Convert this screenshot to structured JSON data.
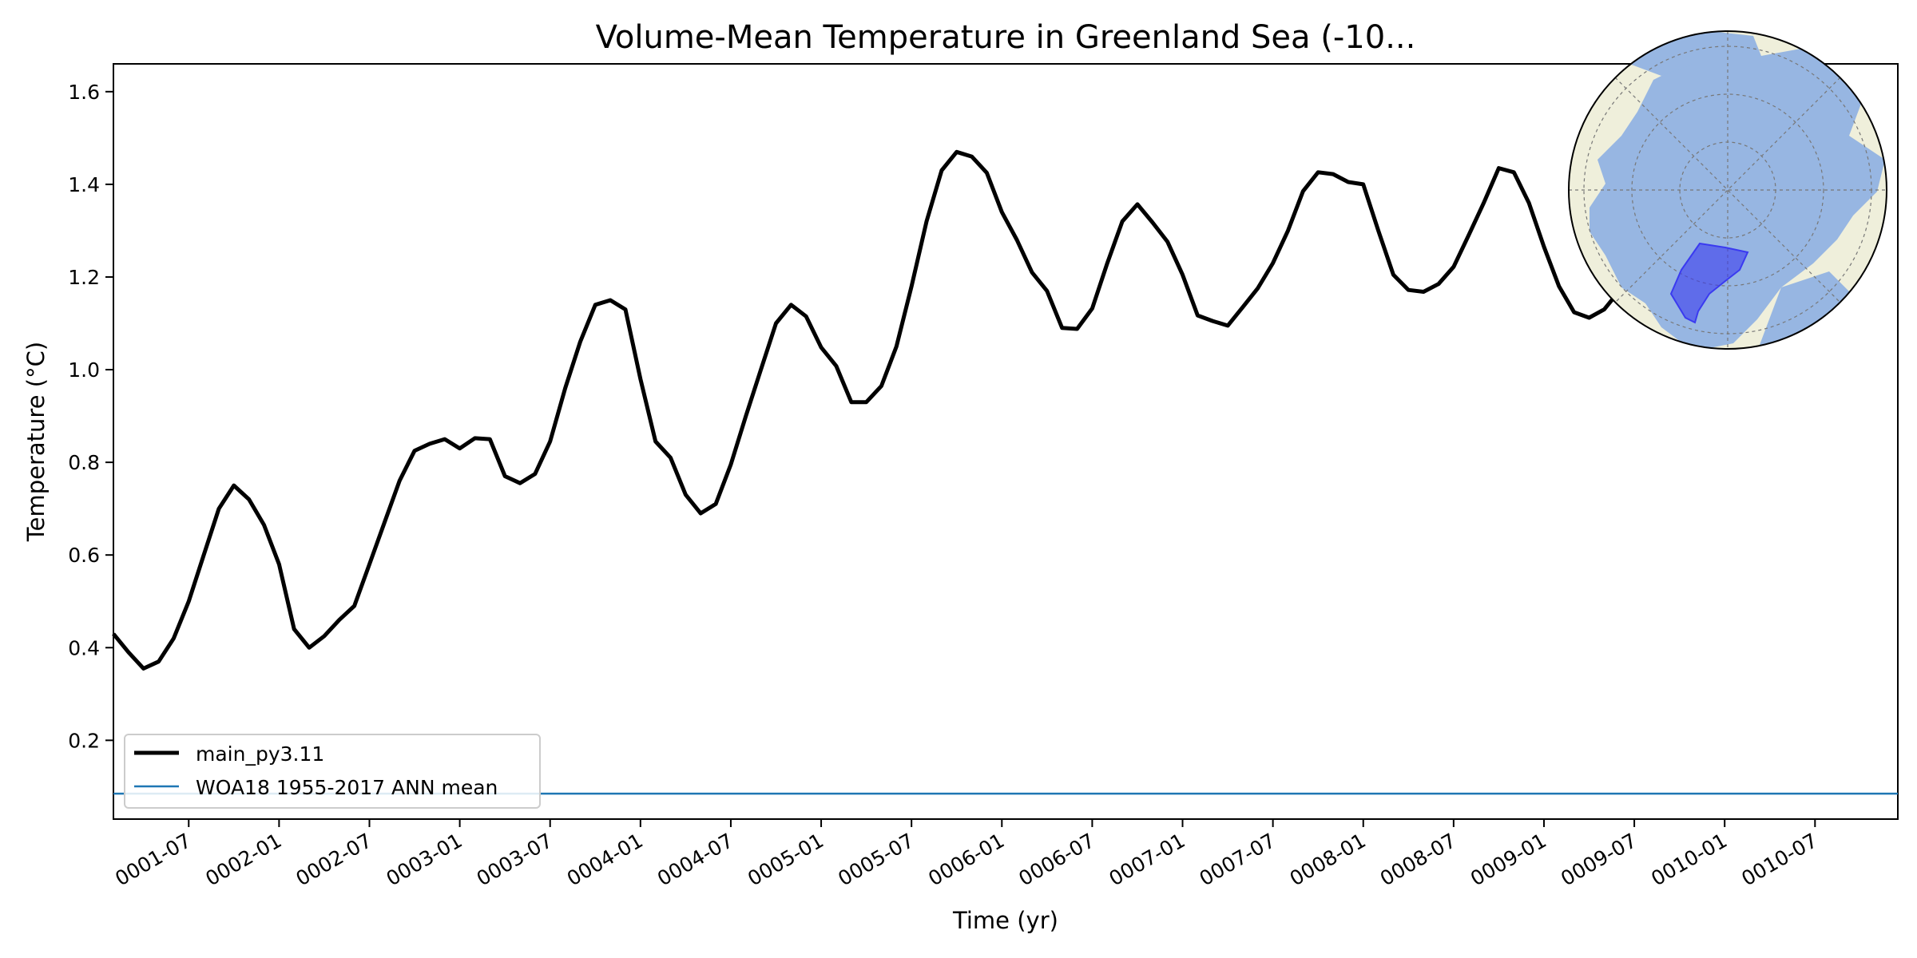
{
  "chart_data": {
    "type": "line",
    "title": "Volume-Mean Temperature in Greenland Sea (-10...",
    "xlabel": "Time (yr)",
    "ylabel": "Temperature (°C)",
    "xlim": [
      "0001-02",
      "0010-12"
    ],
    "ylim": [
      0.03,
      1.66
    ],
    "xticks": [
      "0001-07",
      "0002-01",
      "0002-07",
      "0003-01",
      "0003-07",
      "0004-01",
      "0004-07",
      "0005-01",
      "0005-07",
      "0006-01",
      "0006-07",
      "0007-01",
      "0007-07",
      "0008-01",
      "0008-07",
      "0009-01",
      "0009-07",
      "0010-01",
      "0010-07"
    ],
    "yticks": [
      0.2,
      0.4,
      0.6,
      0.8,
      1.0,
      1.2,
      1.4,
      1.6
    ],
    "ytick_labels": [
      "0.2",
      "0.4",
      "0.6",
      "0.8",
      "1.0",
      "1.2",
      "1.4",
      "1.6"
    ],
    "legend_position": "lower-left",
    "series": [
      {
        "name": "main_py3.11",
        "color": "#000000",
        "x_start": "0001-02",
        "x_step_months": 1,
        "values": [
          0.43,
          0.39,
          0.355,
          0.37,
          0.42,
          0.5,
          0.6,
          0.7,
          0.75,
          0.72,
          0.665,
          0.58,
          0.44,
          0.4,
          0.425,
          0.46,
          0.49,
          0.58,
          0.67,
          0.76,
          0.825,
          0.84,
          0.85,
          0.83,
          0.852,
          0.85,
          0.77,
          0.755,
          0.775,
          0.845,
          0.96,
          1.06,
          1.14,
          1.15,
          1.13,
          0.98,
          0.845,
          0.81,
          0.73,
          0.69,
          0.71,
          0.795,
          0.9,
          1.0,
          1.1,
          1.14,
          1.115,
          1.048,
          1.008,
          0.93,
          0.93,
          0.965,
          1.05,
          1.18,
          1.32,
          1.43,
          1.47,
          1.46,
          1.425,
          1.34,
          1.28,
          1.21,
          1.17,
          1.09,
          1.088,
          1.132,
          1.23,
          1.32,
          1.357,
          1.318,
          1.276,
          1.205,
          1.117,
          1.105,
          1.095,
          1.135,
          1.176,
          1.23,
          1.3,
          1.385,
          1.426,
          1.422,
          1.405,
          1.4,
          1.3,
          1.205,
          1.172,
          1.168,
          1.185,
          1.222,
          1.29,
          1.36,
          1.435,
          1.426,
          1.36,
          1.265,
          1.18,
          1.124,
          1.112,
          1.13,
          1.17,
          1.22,
          1.28,
          1.35,
          1.42,
          1.46,
          1.455,
          1.43,
          1.36
        ]
      },
      {
        "name": "WOA18 1955-2017 ANN mean",
        "color": "#1f77b4",
        "type": "hline",
        "value": 0.085
      }
    ],
    "inset": {
      "description_icon": "north-polar-map-icon",
      "region_color": "#3a3af0",
      "ocean_color": "#97b6e2",
      "land_color": "#efefdb"
    }
  }
}
